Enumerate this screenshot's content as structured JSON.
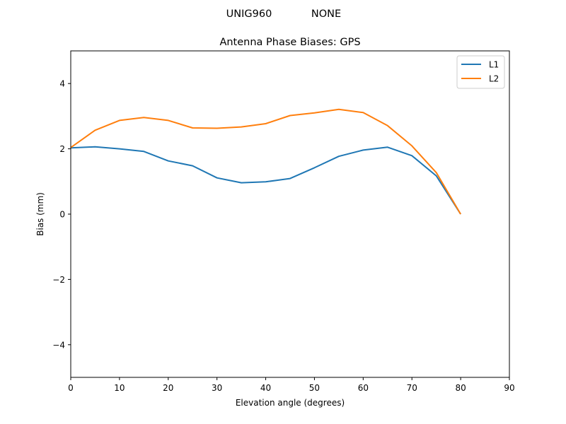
{
  "suptitle": "UNIG960          NONE",
  "suptitle_parts": [
    "UNIG960",
    "NONE"
  ],
  "colors": {
    "L1": "#1f77b4",
    "L2": "#ff7f0e",
    "axis": "#000000",
    "legend_border": "#cccccc"
  },
  "chart_data": {
    "type": "line",
    "title": "Antenna Phase Biases: GPS",
    "suptitle": "UNIG960          NONE",
    "xlabel": "Elevation angle (degrees)",
    "ylabel": "Bias (mm)",
    "xlim": [
      0,
      90
    ],
    "ylim": [
      -5,
      5
    ],
    "xticks": [
      0,
      10,
      20,
      30,
      40,
      50,
      60,
      70,
      80,
      90
    ],
    "yticks": [
      -4,
      -2,
      0,
      2,
      4
    ],
    "grid": false,
    "legend_position": "upper right",
    "x": [
      0,
      5,
      10,
      15,
      20,
      25,
      30,
      35,
      40,
      45,
      50,
      55,
      60,
      65,
      70,
      75,
      80
    ],
    "series": [
      {
        "name": "L1",
        "color": "#1f77b4",
        "values": [
          2.03,
          2.06,
          2.0,
          1.92,
          1.63,
          1.48,
          1.11,
          0.96,
          0.99,
          1.09,
          1.42,
          1.77,
          1.96,
          2.05,
          1.79,
          1.17,
          0.0
        ]
      },
      {
        "name": "L2",
        "color": "#ff7f0e",
        "values": [
          2.04,
          2.57,
          2.87,
          2.96,
          2.87,
          2.64,
          2.63,
          2.67,
          2.77,
          3.02,
          3.1,
          3.21,
          3.11,
          2.71,
          2.09,
          1.27,
          0.0
        ]
      }
    ]
  }
}
